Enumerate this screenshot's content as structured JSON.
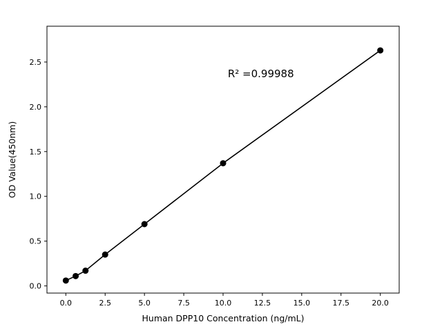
{
  "chart_data": {
    "type": "scatter",
    "title": "",
    "xlabel": "Human DPP10 Concentration (ng/mL)",
    "ylabel": "OD Value(450nm)",
    "x": [
      0,
      0.625,
      1.25,
      2.5,
      5,
      10,
      20
    ],
    "y": [
      0.06,
      0.11,
      0.17,
      0.35,
      0.69,
      1.37,
      2.63
    ],
    "line_through_points": true,
    "marker": "circle",
    "marker_color": "#000000",
    "line_color": "#000000",
    "xlim": [
      -1.2,
      21.2
    ],
    "ylim": [
      -0.08,
      2.9
    ],
    "xticks": [
      0,
      2.5,
      5,
      7.5,
      10,
      12.5,
      15,
      17.5,
      20
    ],
    "xtick_labels": [
      "0.0",
      "2.5",
      "5.0",
      "7.5",
      "10.0",
      "12.5",
      "15.0",
      "17.5",
      "20.0"
    ],
    "yticks": [
      0,
      0.5,
      1.0,
      1.5,
      2.0,
      2.5
    ],
    "ytick_labels": [
      "0.0",
      "0.5",
      "1.0",
      "1.5",
      "2.0",
      "2.5"
    ],
    "annotation": {
      "text": "R² =0.99988",
      "x": 10.3,
      "y": 2.33
    },
    "grid": false,
    "legend": null,
    "background_color": "#ffffff",
    "axis_color": "#000000"
  }
}
